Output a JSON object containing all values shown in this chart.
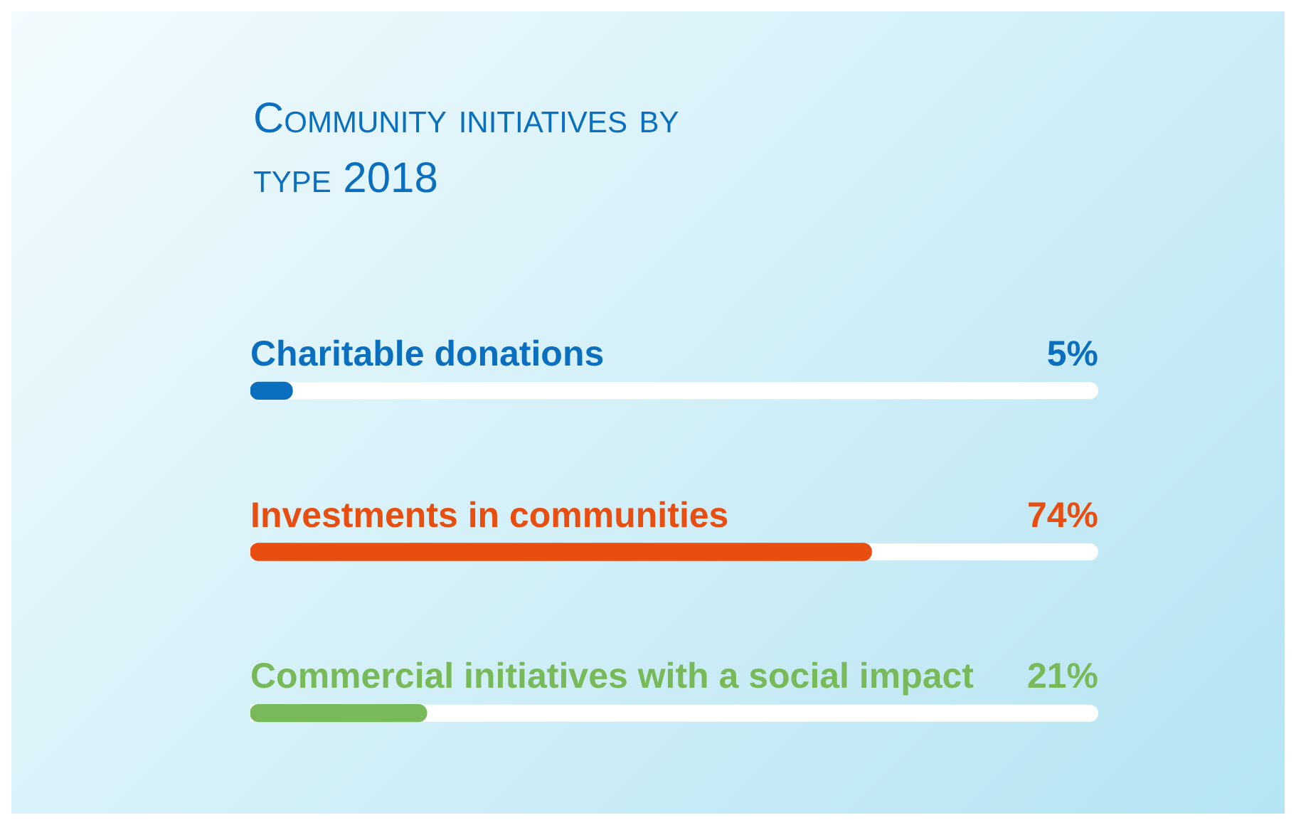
{
  "chart_data": {
    "type": "bar",
    "orientation": "horizontal",
    "title": "Community initiatives by type 2018",
    "categories": [
      "Charitable donations",
      "Investments in communities",
      "Commercial initiatives with a social impact"
    ],
    "values": [
      5,
      74,
      21
    ],
    "colors": [
      "#0b6fbf",
      "#e84e10",
      "#78b95a"
    ],
    "value_labels": [
      "5%",
      "74%",
      "21%"
    ],
    "xlim": [
      0,
      100
    ],
    "tick_labels": false,
    "legend": false
  }
}
